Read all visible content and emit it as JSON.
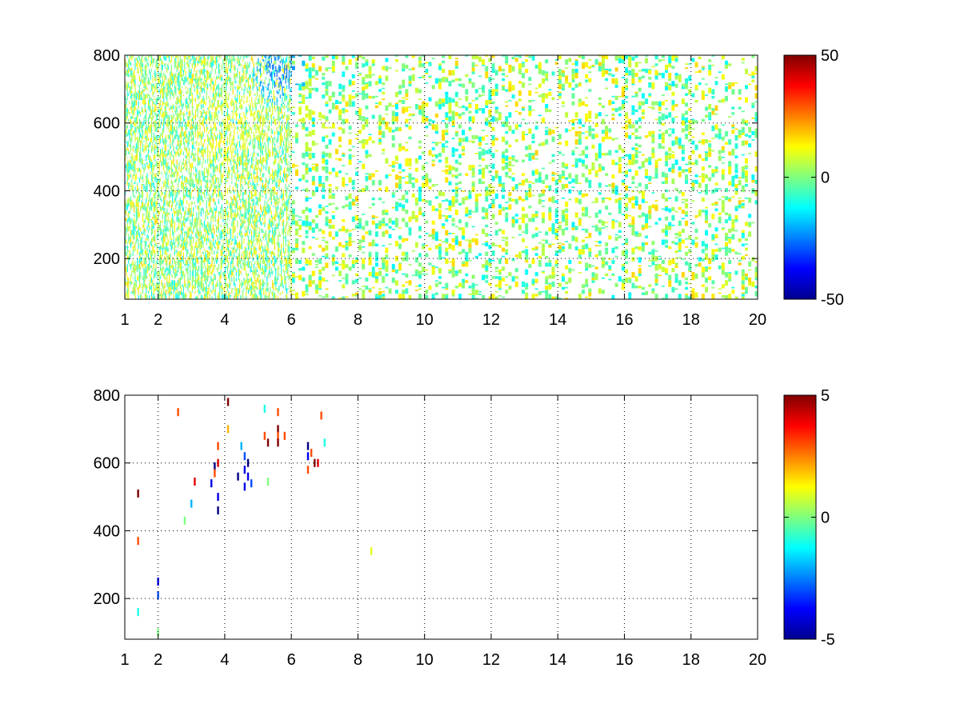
{
  "chart_data": [
    {
      "type": "heatmap",
      "title": "",
      "xlabel": "",
      "ylabel": "",
      "xlim": [
        1,
        20
      ],
      "ylim": [
        80,
        800
      ],
      "xticks": [
        "1",
        "2",
        "4",
        "6",
        "8",
        "10",
        "12",
        "14",
        "16",
        "18",
        "20"
      ],
      "yticks": [
        "200",
        "400",
        "600",
        "800"
      ],
      "grid": true,
      "colormap": "jet",
      "clim": [
        -50,
        50
      ],
      "colorbar_ticks": [
        "-50",
        "0",
        "50"
      ],
      "value_range_observed": [
        -30,
        20
      ],
      "hotspots": [
        {
          "x": 3.9,
          "y": 560,
          "value": 15
        },
        {
          "x": 4.5,
          "y": 620,
          "value": 12
        },
        {
          "x": 5.6,
          "y": 740,
          "value": -30
        },
        {
          "x": 6.5,
          "y": 620,
          "value": 10
        }
      ],
      "fill_density": "dense at x < 6, sparse at x > 6"
    },
    {
      "type": "heatmap",
      "title": "",
      "xlabel": "",
      "ylabel": "",
      "xlim": [
        1,
        20
      ],
      "ylim": [
        80,
        800
      ],
      "xticks": [
        "1",
        "2",
        "4",
        "6",
        "8",
        "10",
        "12",
        "14",
        "16",
        "18",
        "20"
      ],
      "yticks": [
        "200",
        "400",
        "600",
        "800"
      ],
      "grid": true,
      "colormap": "jet",
      "clim": [
        -5,
        5
      ],
      "colorbar_ticks": [
        "-5",
        "0",
        "5"
      ],
      "points": [
        {
          "x": 1.4,
          "y": 510,
          "value": 5
        },
        {
          "x": 1.4,
          "y": 370,
          "value": 3
        },
        {
          "x": 1.4,
          "y": 160,
          "value": -1
        },
        {
          "x": 2.0,
          "y": 250,
          "value": -4
        },
        {
          "x": 2.0,
          "y": 210,
          "value": -3
        },
        {
          "x": 2.0,
          "y": 100,
          "value": 0
        },
        {
          "x": 2.6,
          "y": 750,
          "value": 3
        },
        {
          "x": 2.8,
          "y": 430,
          "value": 0
        },
        {
          "x": 3.0,
          "y": 480,
          "value": -2
        },
        {
          "x": 3.1,
          "y": 545,
          "value": 4
        },
        {
          "x": 3.7,
          "y": 590,
          "value": -5
        },
        {
          "x": 3.7,
          "y": 570,
          "value": 3
        },
        {
          "x": 3.8,
          "y": 650,
          "value": 3
        },
        {
          "x": 3.8,
          "y": 600,
          "value": 4
        },
        {
          "x": 3.8,
          "y": 500,
          "value": -4
        },
        {
          "x": 3.8,
          "y": 460,
          "value": -5
        },
        {
          "x": 3.6,
          "y": 540,
          "value": -4
        },
        {
          "x": 4.1,
          "y": 780,
          "value": 5
        },
        {
          "x": 4.1,
          "y": 700,
          "value": 2
        },
        {
          "x": 4.4,
          "y": 560,
          "value": -5
        },
        {
          "x": 4.5,
          "y": 650,
          "value": -2
        },
        {
          "x": 4.6,
          "y": 620,
          "value": -3
        },
        {
          "x": 4.6,
          "y": 580,
          "value": -4
        },
        {
          "x": 4.7,
          "y": 600,
          "value": -5
        },
        {
          "x": 4.7,
          "y": 560,
          "value": -4
        },
        {
          "x": 4.6,
          "y": 530,
          "value": -4
        },
        {
          "x": 4.8,
          "y": 540,
          "value": -3
        },
        {
          "x": 5.2,
          "y": 760,
          "value": -1
        },
        {
          "x": 5.2,
          "y": 680,
          "value": 3
        },
        {
          "x": 5.3,
          "y": 660,
          "value": 5
        },
        {
          "x": 5.3,
          "y": 545,
          "value": 0
        },
        {
          "x": 5.6,
          "y": 750,
          "value": 3
        },
        {
          "x": 5.6,
          "y": 700,
          "value": 5
        },
        {
          "x": 5.6,
          "y": 680,
          "value": 3
        },
        {
          "x": 5.6,
          "y": 660,
          "value": 5
        },
        {
          "x": 5.8,
          "y": 680,
          "value": 3
        },
        {
          "x": 6.5,
          "y": 650,
          "value": -5
        },
        {
          "x": 6.5,
          "y": 620,
          "value": -4
        },
        {
          "x": 6.6,
          "y": 630,
          "value": 3
        },
        {
          "x": 6.5,
          "y": 580,
          "value": 3
        },
        {
          "x": 6.7,
          "y": 600,
          "value": 5
        },
        {
          "x": 6.8,
          "y": 600,
          "value": 4
        },
        {
          "x": 6.9,
          "y": 740,
          "value": 3
        },
        {
          "x": 7.0,
          "y": 660,
          "value": -1
        },
        {
          "x": 8.4,
          "y": 340,
          "value": 1
        }
      ]
    }
  ]
}
